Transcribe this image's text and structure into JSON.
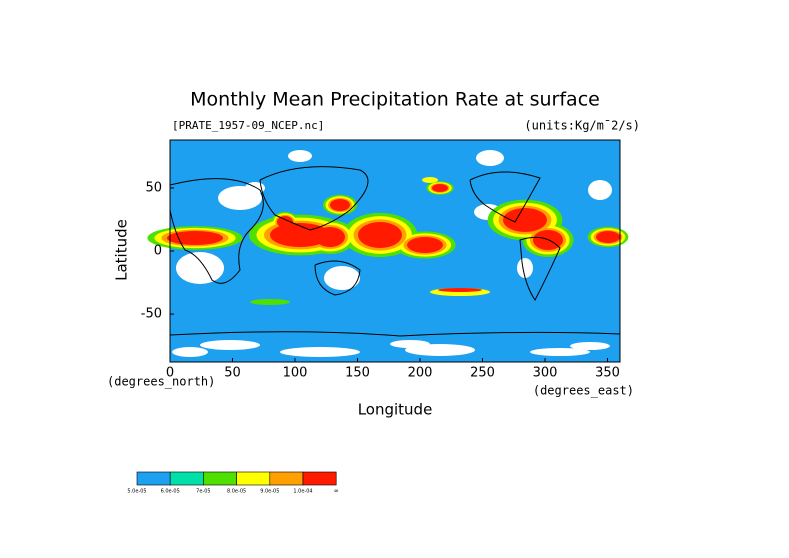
{
  "chart_data": {
    "type": "map",
    "title": "Monthly Mean Precipitation Rate at surface",
    "subtitle": "[PRATE_1957-09_NCEP.nc]",
    "units": "(units:Kg/m¯2/s)",
    "x_label": "Longitude",
    "y_label": "Latitude",
    "x_unit_label": "(degrees_east)",
    "y_unit_label": "(degrees_north)",
    "xlim": [
      0,
      360
    ],
    "ylim": [
      -88,
      88
    ],
    "xticks": [
      0,
      50,
      100,
      150,
      200,
      250,
      300,
      350
    ],
    "yticks": [
      -50,
      0,
      50
    ],
    "colorbar": {
      "levels": [
        {
          "value": 5e-05,
          "label": "5.0e-05"
        },
        {
          "value": 6e-05,
          "label": "6.0e-05"
        },
        {
          "value": 7e-05,
          "label": "7e-05"
        },
        {
          "value": 8e-05,
          "label": "8.0e-05"
        },
        {
          "value": 9e-05,
          "label": "9.0e-05"
        },
        {
          "value": 0.0001,
          "label": "1.0e-04"
        }
      ],
      "end_label": "∞",
      "colors": [
        "#1ea0f0",
        "#00e0a8",
        "#50e000",
        "#ffff00",
        "#ffa000",
        "#ff1a00"
      ]
    }
  }
}
